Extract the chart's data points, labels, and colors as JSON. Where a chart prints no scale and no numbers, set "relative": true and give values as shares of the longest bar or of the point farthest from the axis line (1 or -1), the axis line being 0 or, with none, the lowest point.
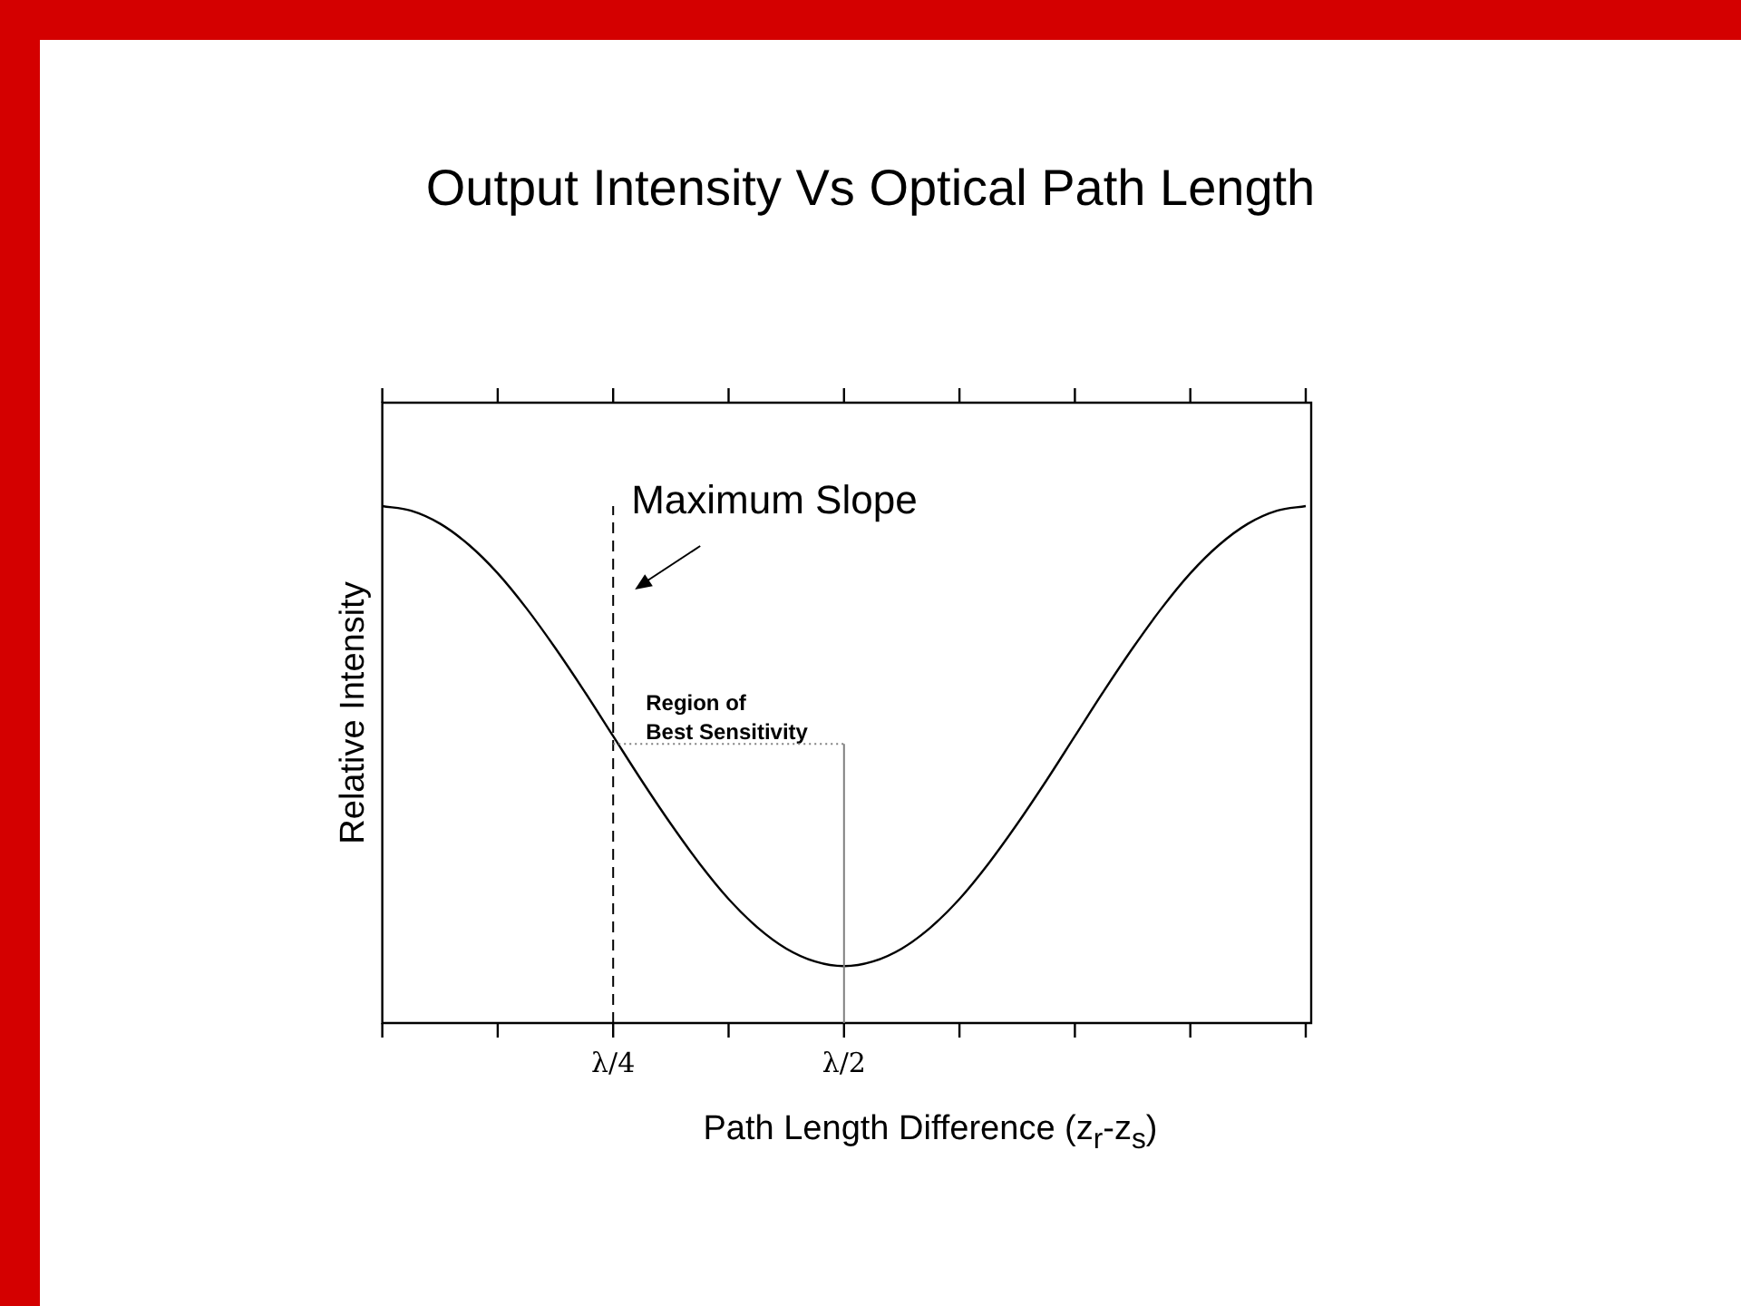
{
  "chart_data": {
    "type": "line",
    "title": "Output Intensity Vs Optical Path Length",
    "xlabel": "Path Length Difference (z$_{r}$-z$_{s}$)",
    "ylabel": "Relative Intensity",
    "relative": true,
    "categories": [
      null,
      null,
      null,
      null,
      null,
      null,
      null,
      null,
      "λ/4",
      null,
      null,
      null,
      null,
      null,
      null,
      null,
      "λ/2",
      null,
      null,
      null,
      null,
      null,
      null,
      null,
      null,
      null,
      null,
      null,
      null,
      null,
      null,
      null,
      null
    ],
    "series": [
      {
        "color": "#000000",
        "values": [
          1.0,
          0.991,
          0.966,
          0.925,
          0.87,
          0.802,
          0.725,
          0.642,
          0.555,
          0.468,
          0.385,
          0.308,
          0.24,
          0.185,
          0.144,
          0.119,
          0.11,
          0.119,
          0.144,
          0.185,
          0.24,
          0.308,
          0.385,
          0.468,
          0.555,
          0.642,
          0.725,
          0.802,
          0.87,
          0.925,
          0.966,
          0.991,
          1.0
        ]
      }
    ],
    "ref_lines": [
      {
        "axis": "x",
        "value": "λ/4",
        "line_style": "dashed",
        "color": "#000000"
      },
      {
        "axis": "x",
        "value": "λ/2",
        "color": "#808080",
        "label": "Region of Best Sensitivity"
      },
      {
        "axis": "y",
        "value": 0.54,
        "line_style": "dotted",
        "color": "#808080"
      }
    ],
    "annotations": [
      "Maximum Slope"
    ],
    "marker": "none",
    "line_style": "solid",
    "grid": false,
    "legend": false
  }
}
